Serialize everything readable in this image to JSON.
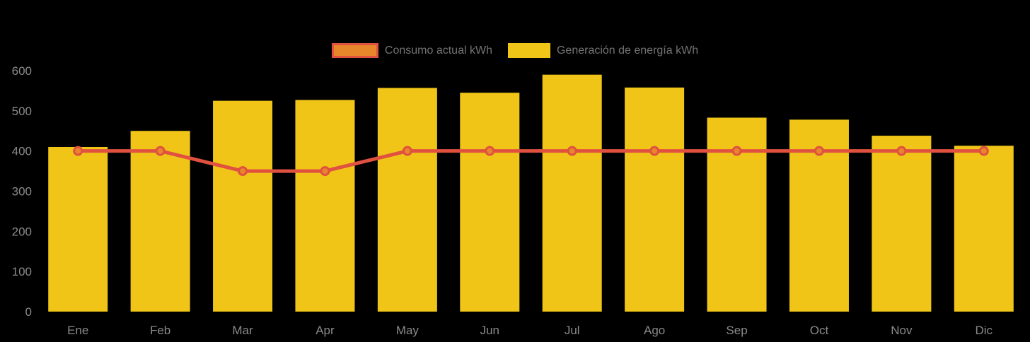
{
  "background_color": "#000000",
  "legend": {
    "position": "top",
    "items": [
      {
        "label": "Consumo actual kWh",
        "swatch": "orange-fill-red-border"
      },
      {
        "label": "Generación de energía kWh",
        "swatch": "yellow-fill"
      }
    ]
  },
  "chart_data": {
    "type": "bar",
    "categories": [
      "Ene",
      "Feb",
      "Mar",
      "Apr",
      "May",
      "Jun",
      "Jul",
      "Ago",
      "Sep",
      "Oct",
      "Nov",
      "Dic"
    ],
    "series": [
      {
        "name": "Consumo actual kWh",
        "type": "line",
        "color": "#E05140",
        "marker_fill": "#E8862B",
        "values": [
          400,
          400,
          350,
          350,
          400,
          400,
          400,
          400,
          400,
          400,
          400,
          400
        ]
      },
      {
        "name": "Generación de energía kWh",
        "type": "bar",
        "color": "#F0C517",
        "values": [
          410,
          450,
          525,
          527,
          557,
          545,
          590,
          558,
          483,
          478,
          438,
          413
        ]
      }
    ],
    "title": "",
    "xlabel": "",
    "ylabel": "",
    "ylim": [
      0,
      600
    ],
    "yticks": [
      0,
      100,
      200,
      300,
      400,
      500,
      600
    ],
    "grid": false,
    "legend_position": "top",
    "axis_label_color": "#8A8A8A"
  }
}
